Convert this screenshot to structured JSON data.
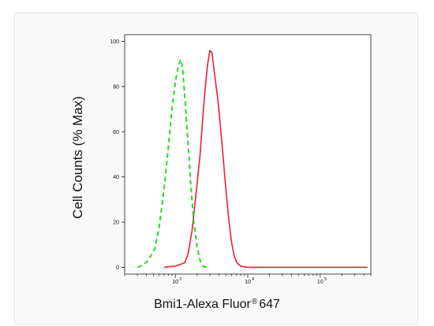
{
  "chart_data": {
    "type": "line",
    "xlabel_main": "Bmi1-Alexa Fluor",
    "xlabel_reg": "®",
    "xlabel_tail": "647",
    "ylabel": "Cell Counts (% Max)",
    "x_scale": "log",
    "xlim": [
      200,
      500000
    ],
    "ylim": [
      -3,
      103
    ],
    "yticks": [
      0,
      20,
      40,
      60,
      80,
      100
    ],
    "ytick_labels": [
      "0",
      "20",
      "40",
      "60",
      "80",
      "100"
    ],
    "xticks": [
      1000,
      10000,
      100000
    ],
    "xtick_labels": [
      "10",
      "10",
      "10"
    ],
    "xtick_exponents": [
      "3",
      "4",
      "5"
    ],
    "grid": false,
    "series": [
      {
        "color": "#e8212b",
        "style": "solid",
        "points": [
          [
            700,
            0
          ],
          [
            1000,
            0.5
          ],
          [
            1350,
            2
          ],
          [
            1500,
            6
          ],
          [
            1700,
            16
          ],
          [
            2000,
            37
          ],
          [
            2200,
            50
          ],
          [
            2400,
            67
          ],
          [
            2600,
            80
          ],
          [
            2800,
            90
          ],
          [
            3000,
            96
          ],
          [
            3200,
            95
          ],
          [
            3500,
            85
          ],
          [
            3900,
            73
          ],
          [
            4400,
            55
          ],
          [
            4900,
            37
          ],
          [
            5400,
            23
          ],
          [
            5900,
            12
          ],
          [
            6500,
            5
          ],
          [
            7100,
            2
          ],
          [
            8000,
            0.5
          ],
          [
            10000,
            0
          ],
          [
            100000,
            0
          ],
          [
            450000,
            0
          ]
        ]
      },
      {
        "color": "#22dd22",
        "style": "dashed",
        "points": [
          [
            300,
            0
          ],
          [
            360,
            1
          ],
          [
            420,
            3
          ],
          [
            520,
            8
          ],
          [
            600,
            18
          ],
          [
            700,
            35
          ],
          [
            800,
            53
          ],
          [
            900,
            70
          ],
          [
            1000,
            82
          ],
          [
            1100,
            89
          ],
          [
            1180,
            92
          ],
          [
            1250,
            89
          ],
          [
            1350,
            76
          ],
          [
            1500,
            55
          ],
          [
            1650,
            35
          ],
          [
            1800,
            20
          ],
          [
            2000,
            9
          ],
          [
            2200,
            3
          ],
          [
            2400,
            0.5
          ],
          [
            2700,
            0
          ]
        ]
      }
    ]
  }
}
